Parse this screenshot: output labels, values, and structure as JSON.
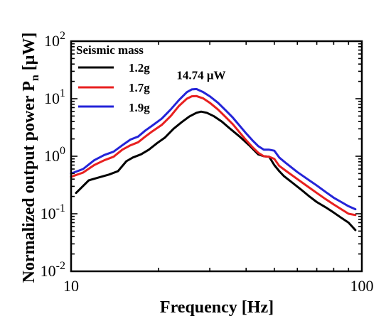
{
  "chart_data": {
    "type": "line",
    "xlabel": "Frequency [Hz]",
    "ylabel": "Normalized output power P",
    "ylabel_sub": "n",
    "ylabel_unit": " [μW]",
    "xscale": "log",
    "yscale": "log",
    "xlim": [
      10,
      100
    ],
    "ylim": [
      0.01,
      100
    ],
    "x_ticks": [
      {
        "v": 10,
        "label": "10"
      },
      {
        "v": 100,
        "label": "100"
      }
    ],
    "y_ticks": [
      {
        "v": 0.01,
        "base": "10",
        "exp": "-2"
      },
      {
        "v": 0.1,
        "base": "10",
        "exp": "-1"
      },
      {
        "v": 1,
        "base": "10",
        "exp": "0"
      },
      {
        "v": 10,
        "base": "10",
        "exp": "1"
      },
      {
        "v": 100,
        "base": "10",
        "exp": "2"
      }
    ],
    "legend_title": "Seismic mass",
    "legend_position": "top-left",
    "grid": false,
    "annotation": "14.74 μW",
    "annotation_at": [
      28,
      22
    ],
    "series": [
      {
        "name": "1.2g",
        "color": "#000000",
        "x": [
          10.4,
          11.5,
          12.5,
          13.5,
          14.5,
          15.5,
          16.3,
          17.4,
          18.5,
          19.8,
          21.0,
          22.5,
          24.0,
          25.5,
          27.0,
          28.0,
          29.3,
          31.0,
          33.0,
          35.0,
          38.0,
          41.0,
          44.0,
          46.0,
          48.0,
          50.0,
          52.0,
          54.0,
          58.0,
          62.0,
          66.0,
          70.0,
          75.0,
          80.0,
          85.0,
          90.0,
          95.0
        ],
        "y": [
          0.23,
          0.38,
          0.43,
          0.48,
          0.55,
          0.82,
          0.95,
          1.08,
          1.3,
          1.7,
          2.1,
          3.0,
          3.9,
          4.9,
          5.7,
          5.96,
          5.7,
          4.95,
          4.0,
          3.1,
          2.2,
          1.55,
          1.08,
          1.0,
          0.98,
          0.7,
          0.55,
          0.45,
          0.34,
          0.26,
          0.2,
          0.16,
          0.13,
          0.105,
          0.085,
          0.07,
          0.052
        ]
      },
      {
        "name": "1.7g",
        "color": "#e82020",
        "x": [
          10.0,
          11.0,
          12.0,
          13.0,
          14.0,
          15.0,
          16.0,
          17.0,
          18.0,
          19.0,
          20.5,
          22.0,
          23.5,
          25.0,
          26.0,
          27.0,
          28.5,
          30.0,
          32.0,
          34.0,
          36.0,
          38.0,
          40.0,
          42.0,
          44.0,
          46.0,
          48.0,
          50.0,
          52.0,
          55.0,
          60.0,
          65.0,
          70.0,
          75.0,
          80.0,
          85.0,
          90.0,
          95.0
        ],
        "y": [
          0.44,
          0.52,
          0.7,
          0.85,
          0.98,
          1.3,
          1.55,
          1.75,
          2.2,
          2.7,
          3.5,
          5.0,
          7.5,
          10.0,
          11.0,
          11.1,
          10.1,
          8.5,
          6.5,
          4.8,
          3.6,
          2.6,
          1.9,
          1.45,
          1.15,
          1.0,
          0.98,
          0.9,
          0.68,
          0.55,
          0.4,
          0.3,
          0.23,
          0.18,
          0.145,
          0.12,
          0.1,
          0.095
        ]
      },
      {
        "name": "1.9g",
        "color": "#2424d8",
        "x": [
          10.0,
          11.0,
          12.0,
          13.0,
          14.0,
          15.0,
          16.0,
          17.0,
          18.0,
          19.0,
          20.5,
          22.0,
          23.5,
          25.0,
          26.0,
          27.0,
          28.5,
          30.0,
          32.0,
          34.0,
          36.0,
          38.0,
          40.0,
          42.0,
          44.0,
          46.0,
          48.0,
          50.0,
          52.0,
          55.0,
          60.0,
          65.0,
          70.0,
          75.0,
          80.0,
          85.0,
          90.0,
          95.0
        ],
        "y": [
          0.5,
          0.6,
          0.85,
          1.05,
          1.2,
          1.55,
          1.95,
          2.2,
          2.8,
          3.4,
          4.5,
          6.5,
          9.5,
          13.0,
          14.5,
          14.74,
          13.0,
          11.0,
          8.5,
          6.3,
          4.7,
          3.4,
          2.5,
          1.9,
          1.5,
          1.3,
          1.3,
          1.25,
          0.95,
          0.75,
          0.53,
          0.4,
          0.31,
          0.24,
          0.19,
          0.16,
          0.135,
          0.12
        ]
      }
    ]
  }
}
